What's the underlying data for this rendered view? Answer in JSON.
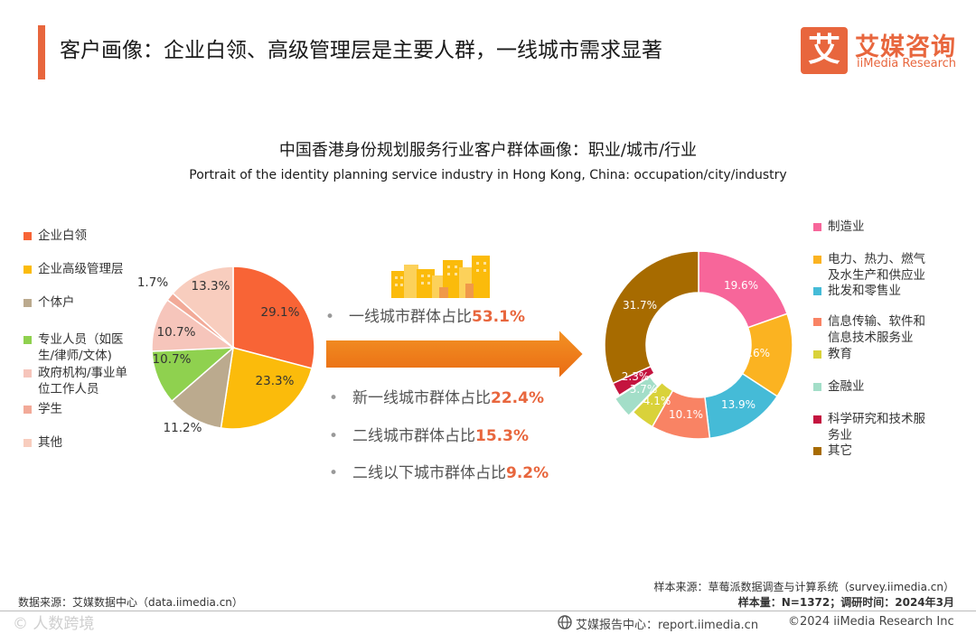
{
  "header": {
    "title": "客户画像：企业白领、高级管理层是主要人群，一线城市需求显著",
    "logo_icon": "艾",
    "logo_cn": "艾媒咨询",
    "logo_en": "iiMedia Research",
    "accent_color": "#e8663d"
  },
  "chart_data": [
    {
      "type": "pie",
      "title": "中国香港身份规划服务行业客户群体画像：职业/城市/行业",
      "subtitle": "Portrait of the identity planning service industry in Hong Kong, China: occupation/city/industry",
      "unit": "%",
      "legend_position": "left",
      "categories": [
        "企业白领",
        "企业高级管理层",
        "个体户",
        "专业人员（如医生/律师/文体)",
        "政府机构/事业单位工作人员",
        "学生",
        "其他"
      ],
      "legend_lines": [
        [
          "企业白领"
        ],
        [
          "企业高级管理层"
        ],
        [
          "个体户"
        ],
        [
          "专业人员（如医",
          "生/律师/文体)"
        ],
        [
          "政府机构/事业单",
          "位工作人员"
        ],
        [
          "学生"
        ],
        [
          "其他"
        ]
      ],
      "values": [
        29.1,
        23.3,
        11.2,
        10.7,
        10.7,
        1.7,
        13.3
      ],
      "labels": [
        "29.1%",
        "23.3%",
        "11.2%",
        "10.7%",
        "10.7%",
        "1.7%",
        "13.3%"
      ],
      "colors": [
        "#f86436",
        "#fbbb0b",
        "#bbaa8e",
        "#8fd14f",
        "#f6c5bb",
        "#f2aa98",
        "#f8cdbe"
      ]
    },
    {
      "type": "list",
      "items": [
        {
          "label": "一线城市群体占比",
          "value": "53.1%"
        },
        {
          "label": "新一线城市群体占比",
          "value": "22.4%"
        },
        {
          "label": "二线城市群体占比",
          "value": "15.3%"
        },
        {
          "label": "二线以下城市群体占比",
          "value": "9.2%"
        }
      ]
    },
    {
      "type": "donut",
      "unit": "%",
      "legend_position": "right",
      "categories": [
        "制造业",
        "电力、热力、燃气及水生产和供应业",
        "批发和零售业",
        "信息传输、软件和信息技术服务业",
        "教育",
        "金融业",
        "科学研究和技术服务业",
        "其它"
      ],
      "legend_lines": [
        [
          "制造业"
        ],
        [
          "电力、热力、燃气",
          "及水生产和供应业"
        ],
        [
          "批发和零售业"
        ],
        [
          "信息传输、软件和",
          "信息技术服务业"
        ],
        [
          "教育"
        ],
        [
          "金融业"
        ],
        [
          "科学研究和技术服",
          "务业"
        ],
        [
          "其它"
        ]
      ],
      "values": [
        19.6,
        14.6,
        13.9,
        10.1,
        4.1,
        3.7,
        2.3,
        31.7
      ],
      "labels": [
        "19.6%",
        "14.6%",
        "13.9%",
        "10.1%",
        "4.1%",
        "3.7%",
        "2.3%",
        "31.7%"
      ],
      "colors": [
        "#f7669a",
        "#fbb321",
        "#45bbd7",
        "#f98364",
        "#d9d23a",
        "#a3dec8",
        "#c4143f",
        "#a76b00"
      ]
    }
  ],
  "footer": {
    "sample_source": "样本来源：草莓派数据调查与计算系统（survey.iimedia.cn）",
    "sample_info": "样本量：N=1372；调研时间：2024年3月",
    "data_source": "数据来源：艾媒数据中心（data.iimedia.cn）",
    "report_center": "艾媒报告中心：report.iimedia.cn",
    "copyright": "©2024  iiMedia Research  Inc",
    "watermark": "©  人数跨境"
  },
  "icons": {
    "arrow": "right-arrow-icon",
    "city": "city-buildings-icon",
    "globe": "globe-icon"
  }
}
